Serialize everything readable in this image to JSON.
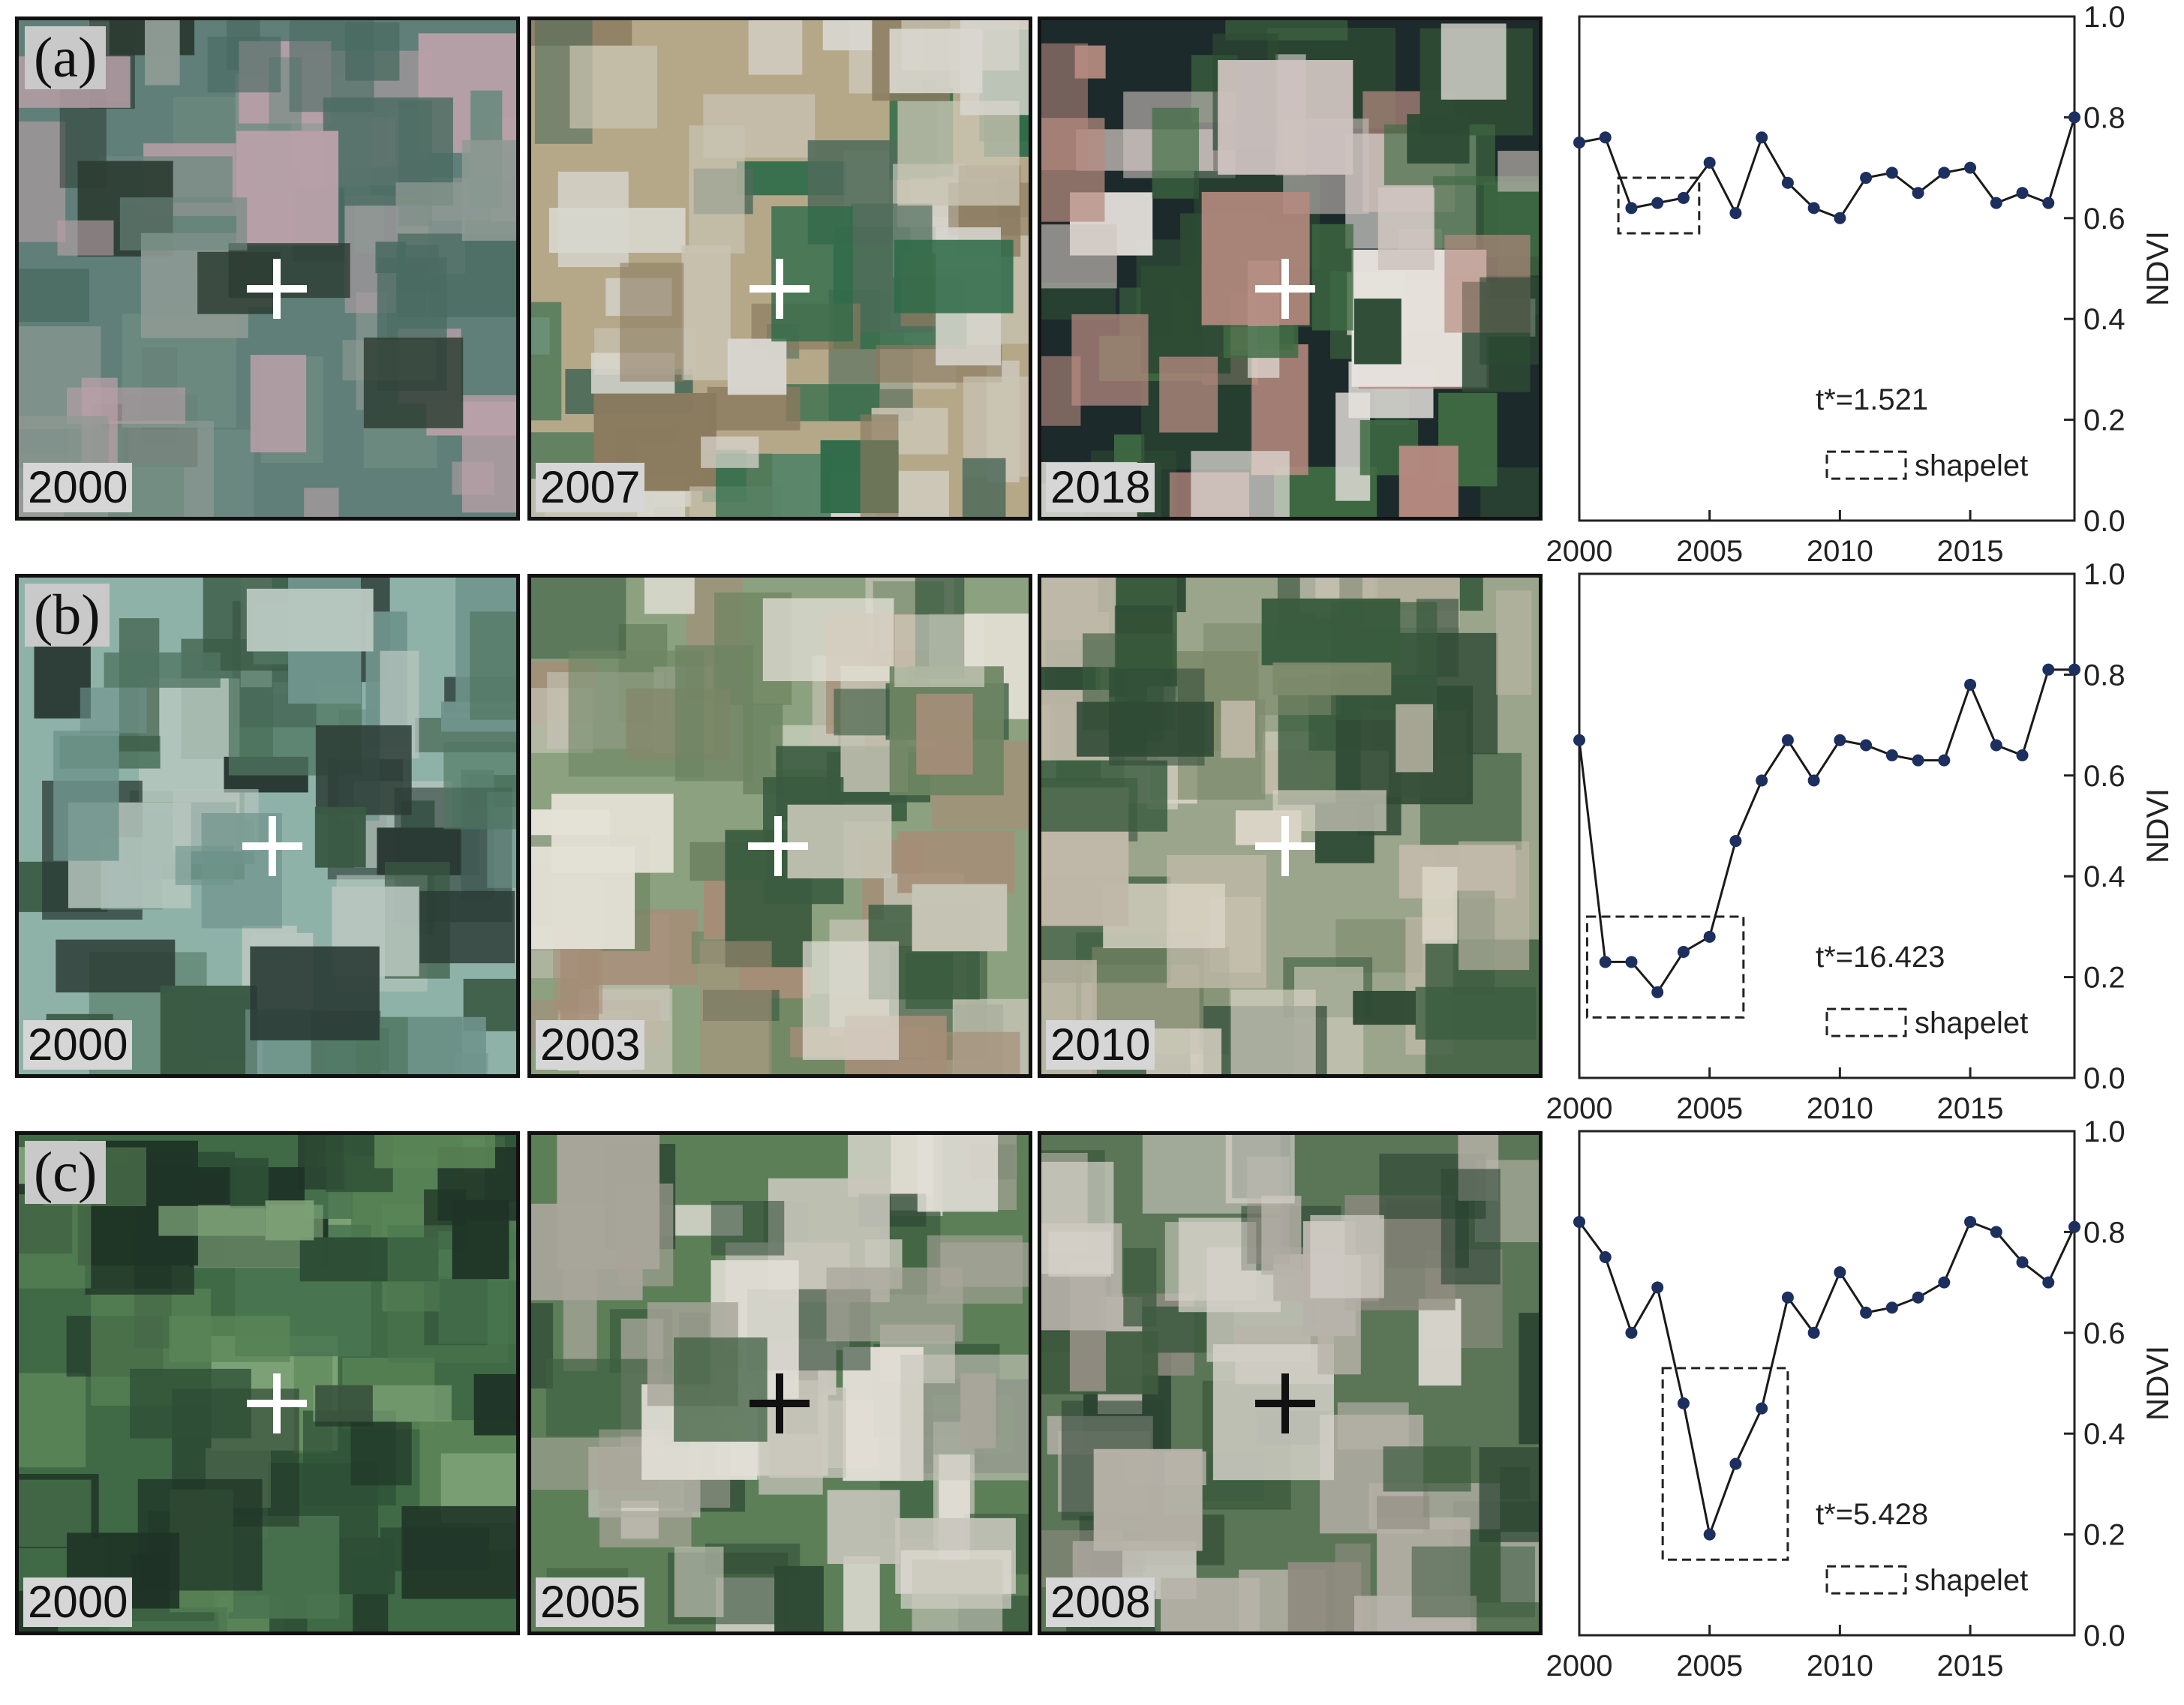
{
  "panels": [
    {
      "label": "(a)",
      "tiles": [
        {
          "year": "2000",
          "palette": [
            "#5f7f78",
            "#4a6b62",
            "#8e9a94",
            "#b8a0a8",
            "#2d3d34",
            "#6d8a80"
          ],
          "cross_color": "#ffffff"
        },
        {
          "year": "2007",
          "palette": [
            "#b5a889",
            "#c9c4b3",
            "#2f6b48",
            "#8a7a5e",
            "#d8d6cf",
            "#4f6b5a"
          ],
          "cross_color": "#ffffff"
        },
        {
          "year": "2018",
          "palette": [
            "#1d2a2b",
            "#2d4a34",
            "#cfc4c0",
            "#b58a80",
            "#3f6b43",
            "#e6e1dc"
          ],
          "cross_color": "#ffffff"
        }
      ]
    },
    {
      "label": "(b)",
      "tiles": [
        {
          "year": "2000",
          "palette": [
            "#8fb2a8",
            "#6f948b",
            "#3a5a44",
            "#2a3a35",
            "#b8c7c0",
            "#4f7561"
          ],
          "cross_color": "#ffffff"
        },
        {
          "year": "2003",
          "palette": [
            "#8ca17f",
            "#c6c4b5",
            "#3a5b40",
            "#6d8462",
            "#e3e0d6",
            "#a58e78"
          ],
          "cross_color": "#ffffff"
        },
        {
          "year": "2010",
          "palette": [
            "#9aa58c",
            "#c0b9a9",
            "#3a5c3e",
            "#7d8a6b",
            "#d9d3c5",
            "#2f4a35"
          ],
          "cross_color": "#ffffff"
        }
      ]
    },
    {
      "label": "(c)",
      "tiles": [
        {
          "year": "2000",
          "palette": [
            "#3f6a45",
            "#2e4f36",
            "#5b8658",
            "#1f3427",
            "#7ea278",
            "#4a7550"
          ],
          "cross_color": "#ffffff"
        },
        {
          "year": "2005",
          "palette": [
            "#5d7f58",
            "#c9c7bd",
            "#3d5f40",
            "#a8a59a",
            "#e2ded6",
            "#2f4a35"
          ],
          "cross_color": "#111111"
        },
        {
          "year": "2008",
          "palette": [
            "#5a7657",
            "#b8b3aa",
            "#3e5b40",
            "#8f8b80",
            "#d6d2ca",
            "#2c4533"
          ],
          "cross_color": "#111111"
        }
      ]
    }
  ],
  "chart_data": [
    {
      "type": "line",
      "title": "",
      "xlabel": "",
      "ylabel": "NDVI",
      "xlim": [
        2000,
        2019
      ],
      "ylim": [
        0.0,
        1.0
      ],
      "xticks": [
        "2000",
        "2005",
        "2010",
        "2015"
      ],
      "yticks": [
        "0.0",
        "0.2",
        "0.4",
        "0.6",
        "0.8",
        "1.0"
      ],
      "x": [
        2000,
        2001,
        2002,
        2003,
        2004,
        2005,
        2006,
        2007,
        2008,
        2009,
        2010,
        2011,
        2012,
        2013,
        2014,
        2015,
        2016,
        2017,
        2018,
        2019
      ],
      "series": [
        {
          "values": [
            0.75,
            0.76,
            0.62,
            0.63,
            0.64,
            0.71,
            0.61,
            0.76,
            0.67,
            0.62,
            0.6,
            0.68,
            0.69,
            0.65,
            0.69,
            0.7,
            0.63,
            0.65,
            0.63,
            0.8
          ]
        }
      ],
      "shapelet": {
        "x": [
          2001.5,
          2004.6
        ],
        "y": [
          0.57,
          0.68
        ]
      },
      "annotation": "t*=1.521",
      "legend_label": "shapelet"
    },
    {
      "type": "line",
      "title": "",
      "xlabel": "",
      "ylabel": "NDVI",
      "xlim": [
        2000,
        2019
      ],
      "ylim": [
        0.0,
        1.0
      ],
      "xticks": [
        "2000",
        "2005",
        "2010",
        "2015"
      ],
      "yticks": [
        "0.0",
        "0.2",
        "0.4",
        "0.6",
        "0.8",
        "1.0"
      ],
      "x": [
        2000,
        2001,
        2002,
        2003,
        2004,
        2005,
        2006,
        2007,
        2008,
        2009,
        2010,
        2011,
        2012,
        2013,
        2014,
        2015,
        2016,
        2017,
        2018,
        2019
      ],
      "series": [
        {
          "values": [
            0.67,
            0.23,
            0.23,
            0.17,
            0.25,
            0.28,
            0.47,
            0.59,
            0.67,
            0.59,
            0.67,
            0.66,
            0.64,
            0.63,
            0.63,
            0.78,
            0.66,
            0.64,
            0.81,
            0.81
          ]
        }
      ],
      "shapelet": {
        "x": [
          2000.3,
          2006.3
        ],
        "y": [
          0.12,
          0.32
        ]
      },
      "annotation": "t*=16.423",
      "legend_label": "shapelet"
    },
    {
      "type": "line",
      "title": "",
      "xlabel": "",
      "ylabel": "NDVI",
      "xlim": [
        2000,
        2019
      ],
      "ylim": [
        0.0,
        1.0
      ],
      "xticks": [
        "2000",
        "2005",
        "2010",
        "2015"
      ],
      "yticks": [
        "0.0",
        "0.2",
        "0.4",
        "0.6",
        "0.8",
        "1.0"
      ],
      "x": [
        2000,
        2001,
        2002,
        2003,
        2004,
        2005,
        2006,
        2007,
        2008,
        2009,
        2010,
        2011,
        2012,
        2013,
        2014,
        2015,
        2016,
        2017,
        2018,
        2019
      ],
      "series": [
        {
          "values": [
            0.82,
            0.75,
            0.6,
            0.69,
            0.46,
            0.2,
            0.34,
            0.45,
            0.67,
            0.6,
            0.72,
            0.64,
            0.65,
            0.67,
            0.7,
            0.82,
            0.8,
            0.74,
            0.7,
            0.81
          ]
        }
      ],
      "shapelet": {
        "x": [
          2003.2,
          2008.0
        ],
        "y": [
          0.15,
          0.53
        ]
      },
      "annotation": "t*=5.428",
      "legend_label": "shapelet"
    }
  ]
}
